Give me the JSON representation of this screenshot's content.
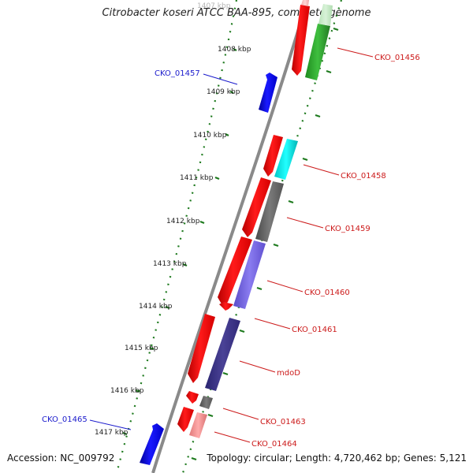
{
  "title": "Citrobacter koseri ATCC BAA-895, complete genome",
  "accession": "Accession: NC_009792",
  "summary": "Topology: circular; Length: 4,720,462 bp; Genes: 5,121",
  "colors": {
    "backbone": "#8c8c8c",
    "ticks": "#1e7a1e",
    "forward_label": "#1a1acc",
    "reverse_label": "#cc1a1a"
  },
  "scale_labels": [
    "1407 kbp",
    "1408 kbp",
    "1409 kbp",
    "1410 kbp",
    "1411 kbp",
    "1412 kbp",
    "1413 kbp",
    "1414 kbp",
    "1415 kbp",
    "1416 kbp",
    "1417 kbp"
  ],
  "gene_labels": [
    {
      "name": "CKO_01456",
      "strand": "reverse"
    },
    {
      "name": "CKO_01457",
      "strand": "forward"
    },
    {
      "name": "CKO_01458",
      "strand": "reverse"
    },
    {
      "name": "CKO_01459",
      "strand": "reverse"
    },
    {
      "name": "CKO_01460",
      "strand": "reverse"
    },
    {
      "name": "CKO_01461",
      "strand": "reverse"
    },
    {
      "name": "mdoD",
      "strand": "reverse"
    },
    {
      "name": "CKO_01463",
      "strand": "reverse"
    },
    {
      "name": "CKO_01464",
      "strand": "reverse"
    },
    {
      "name": "CKO_01465",
      "strand": "forward"
    }
  ]
}
